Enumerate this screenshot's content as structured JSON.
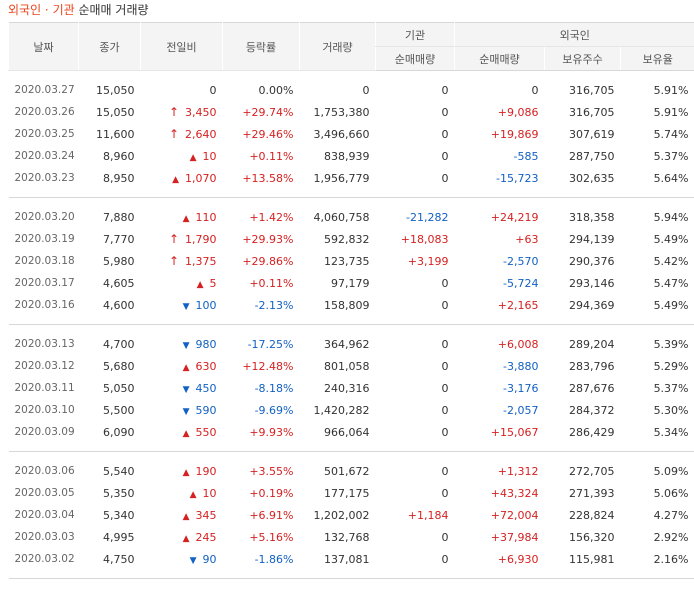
{
  "title": {
    "part1": "외국인 · 기관",
    "part2": " 순매매 거래량"
  },
  "headers": {
    "date": "날짜",
    "close": "종가",
    "change": "전일비",
    "rate": "등락률",
    "volume": "거래량",
    "inst": "기관",
    "foreign": "외국인",
    "inst_net": "순매매량",
    "foreign_net": "순매매량",
    "holding": "보유주수",
    "ratio": "보유율"
  },
  "groups": [
    [
      {
        "date": "2020.03.27",
        "close": "15,050",
        "dir": "none",
        "change": "0",
        "rate": "0.00%",
        "volume": "0",
        "inst": "0",
        "foreign": "0",
        "holding": "316,705",
        "ratio": "5.91%"
      },
      {
        "date": "2020.03.26",
        "close": "15,050",
        "dir": "limit",
        "change": "3,450",
        "rate": "+29.74%",
        "volume": "1,753,380",
        "inst": "0",
        "foreign": "+9,086",
        "holding": "316,705",
        "ratio": "5.91%"
      },
      {
        "date": "2020.03.25",
        "close": "11,600",
        "dir": "limit",
        "change": "2,640",
        "rate": "+29.46%",
        "volume": "3,496,660",
        "inst": "0",
        "foreign": "+19,869",
        "holding": "307,619",
        "ratio": "5.74%"
      },
      {
        "date": "2020.03.24",
        "close": "8,960",
        "dir": "up",
        "change": "10",
        "rate": "+0.11%",
        "volume": "838,939",
        "inst": "0",
        "foreign": "-585",
        "holding": "287,750",
        "ratio": "5.37%"
      },
      {
        "date": "2020.03.23",
        "close": "8,950",
        "dir": "up",
        "change": "1,070",
        "rate": "+13.58%",
        "volume": "1,956,779",
        "inst": "0",
        "foreign": "-15,723",
        "holding": "302,635",
        "ratio": "5.64%"
      }
    ],
    [
      {
        "date": "2020.03.20",
        "close": "7,880",
        "dir": "up",
        "change": "110",
        "rate": "+1.42%",
        "volume": "4,060,758",
        "inst": "-21,282",
        "foreign": "+24,219",
        "holding": "318,358",
        "ratio": "5.94%"
      },
      {
        "date": "2020.03.19",
        "close": "7,770",
        "dir": "limit",
        "change": "1,790",
        "rate": "+29.93%",
        "volume": "592,832",
        "inst": "+18,083",
        "foreign": "+63",
        "holding": "294,139",
        "ratio": "5.49%"
      },
      {
        "date": "2020.03.18",
        "close": "5,980",
        "dir": "limit",
        "change": "1,375",
        "rate": "+29.86%",
        "volume": "123,735",
        "inst": "+3,199",
        "foreign": "-2,570",
        "holding": "290,376",
        "ratio": "5.42%"
      },
      {
        "date": "2020.03.17",
        "close": "4,605",
        "dir": "up",
        "change": "5",
        "rate": "+0.11%",
        "volume": "97,179",
        "inst": "0",
        "foreign": "-5,724",
        "holding": "293,146",
        "ratio": "5.47%"
      },
      {
        "date": "2020.03.16",
        "close": "4,600",
        "dir": "down",
        "change": "100",
        "rate": "-2.13%",
        "volume": "158,809",
        "inst": "0",
        "foreign": "+2,165",
        "holding": "294,369",
        "ratio": "5.49%"
      }
    ],
    [
      {
        "date": "2020.03.13",
        "close": "4,700",
        "dir": "down",
        "change": "980",
        "rate": "-17.25%",
        "volume": "364,962",
        "inst": "0",
        "foreign": "+6,008",
        "holding": "289,204",
        "ratio": "5.39%"
      },
      {
        "date": "2020.03.12",
        "close": "5,680",
        "dir": "up",
        "change": "630",
        "rate": "+12.48%",
        "volume": "801,058",
        "inst": "0",
        "foreign": "-3,880",
        "holding": "283,796",
        "ratio": "5.29%"
      },
      {
        "date": "2020.03.11",
        "close": "5,050",
        "dir": "down",
        "change": "450",
        "rate": "-8.18%",
        "volume": "240,316",
        "inst": "0",
        "foreign": "-3,176",
        "holding": "287,676",
        "ratio": "5.37%"
      },
      {
        "date": "2020.03.10",
        "close": "5,500",
        "dir": "down",
        "change": "590",
        "rate": "-9.69%",
        "volume": "1,420,282",
        "inst": "0",
        "foreign": "-2,057",
        "holding": "284,372",
        "ratio": "5.30%"
      },
      {
        "date": "2020.03.09",
        "close": "6,090",
        "dir": "up",
        "change": "550",
        "rate": "+9.93%",
        "volume": "966,064",
        "inst": "0",
        "foreign": "+15,067",
        "holding": "286,429",
        "ratio": "5.34%"
      }
    ],
    [
      {
        "date": "2020.03.06",
        "close": "5,540",
        "dir": "up",
        "change": "190",
        "rate": "+3.55%",
        "volume": "501,672",
        "inst": "0",
        "foreign": "+1,312",
        "holding": "272,705",
        "ratio": "5.09%"
      },
      {
        "date": "2020.03.05",
        "close": "5,350",
        "dir": "up",
        "change": "10",
        "rate": "+0.19%",
        "volume": "177,175",
        "inst": "0",
        "foreign": "+43,324",
        "holding": "271,393",
        "ratio": "5.06%"
      },
      {
        "date": "2020.03.04",
        "close": "5,340",
        "dir": "up",
        "change": "345",
        "rate": "+6.91%",
        "volume": "1,202,002",
        "inst": "+1,184",
        "foreign": "+72,004",
        "holding": "228,824",
        "ratio": "4.27%"
      },
      {
        "date": "2020.03.03",
        "close": "4,995",
        "dir": "up",
        "change": "245",
        "rate": "+5.16%",
        "volume": "132,768",
        "inst": "0",
        "foreign": "+37,984",
        "holding": "156,320",
        "ratio": "2.92%"
      },
      {
        "date": "2020.03.02",
        "close": "4,750",
        "dir": "down",
        "change": "90",
        "rate": "-1.86%",
        "volume": "137,081",
        "inst": "0",
        "foreign": "+6,930",
        "holding": "115,981",
        "ratio": "2.16%"
      }
    ]
  ],
  "colors": {
    "up": "#d52121",
    "down": "#1261c4",
    "title_accent": "#e8461e"
  },
  "icons": {
    "limit": "limit-up-arrow-icon",
    "up": "up-triangle-icon",
    "down": "down-triangle-icon"
  }
}
